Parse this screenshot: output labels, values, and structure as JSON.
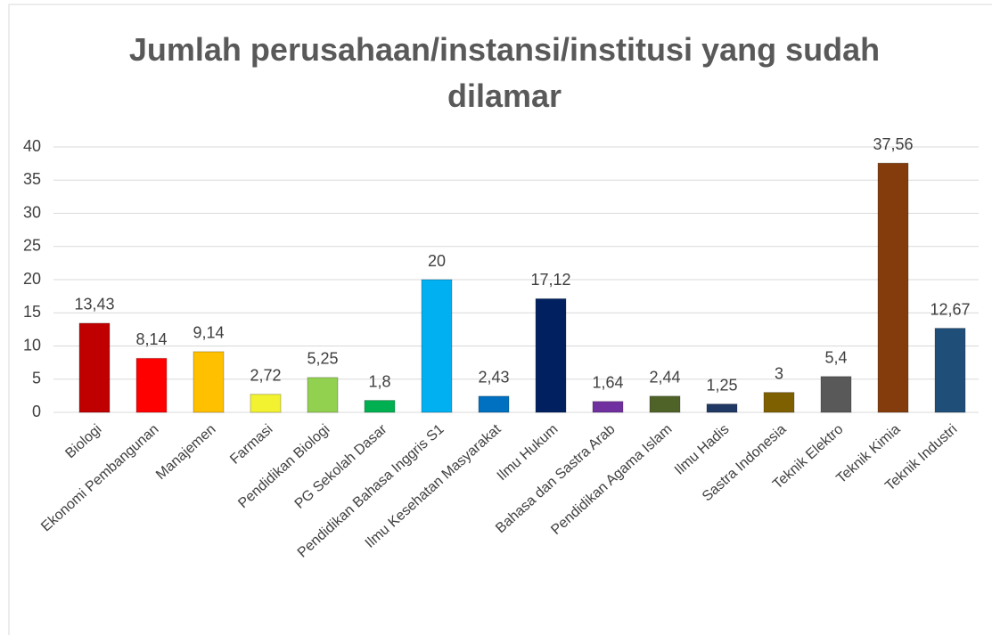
{
  "chart_data": {
    "type": "bar",
    "title": "Jumlah perusahaan/instansi/institusi yang sudah dilamar",
    "categories": [
      "Biologi",
      "Ekonomi Pembangunan",
      "Manajemen",
      "Farmasi",
      "Pendidikan Biologi",
      "PG Sekolah Dasar",
      "Pendidikan Bahasa Inggris S1",
      "Ilmu Kesehatan Masyarakat",
      "Ilmu Hukum",
      "Bahasa dan Sastra Arab",
      "Pendidikan Agama Islam",
      "Ilmu Hadis",
      "Sastra Indonesia",
      "Teknik Elektro",
      "Teknik Kimia",
      "Teknik Industri"
    ],
    "values": [
      13.43,
      8.14,
      9.14,
      2.72,
      5.25,
      1.8,
      20,
      2.43,
      17.12,
      1.64,
      2.44,
      1.25,
      3,
      5.4,
      37.56,
      12.67
    ],
    "value_labels": [
      "13,43",
      "8,14",
      "9,14",
      "2,72",
      "5,25",
      "1,8",
      "20",
      "2,43",
      "17,12",
      "1,64",
      "2,44",
      "1,25",
      "3",
      "5,4",
      "37,56",
      "12,67"
    ],
    "colors": [
      "#c00000",
      "#ff0000",
      "#ffc000",
      "#f2f230",
      "#92d050",
      "#00b050",
      "#00b0f0",
      "#0070c0",
      "#002060",
      "#7030a0",
      "#4f6228",
      "#1f3864",
      "#7f6000",
      "#595959",
      "#843c0c",
      "#1f4e79"
    ],
    "ylim": [
      0,
      40
    ],
    "yticks": [
      0,
      5,
      10,
      15,
      20,
      25,
      30,
      35,
      40
    ],
    "grid": true
  }
}
